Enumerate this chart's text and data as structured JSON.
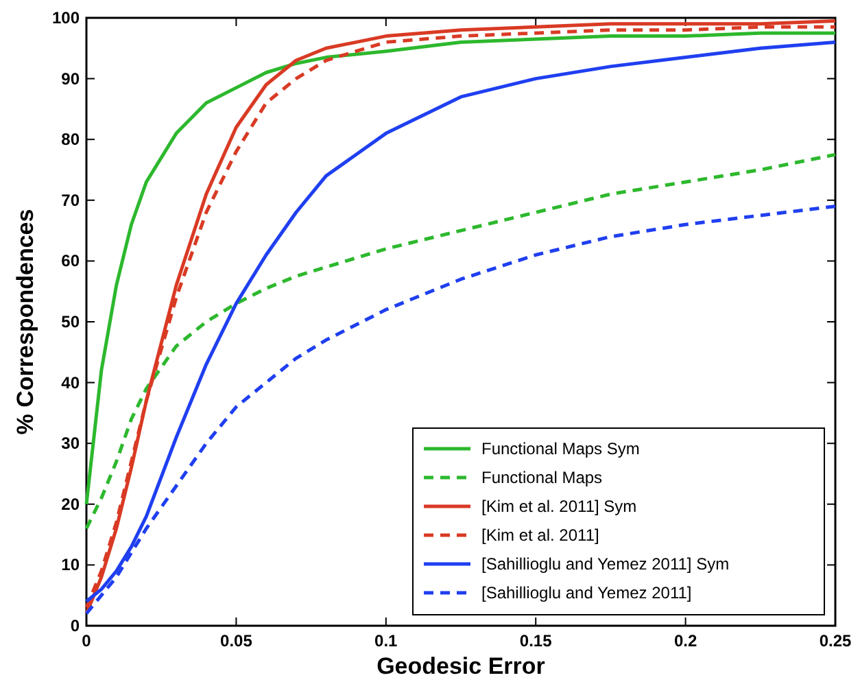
{
  "chart_data": {
    "type": "line",
    "xlabel": "Geodesic Error",
    "ylabel": "% Correspondences",
    "x": [
      0,
      0.005,
      0.01,
      0.015,
      0.02,
      0.03,
      0.04,
      0.05,
      0.06,
      0.07,
      0.08,
      0.1,
      0.125,
      0.15,
      0.175,
      0.2,
      0.225,
      0.25
    ],
    "series": [
      {
        "name": "Functional Maps Sym",
        "color": "#2db82d",
        "line_style": "solid",
        "values": [
          20,
          42,
          56,
          66,
          73,
          81,
          86,
          88.5,
          91,
          92.5,
          93.5,
          94.5,
          96,
          96.5,
          97,
          97,
          97.5,
          97.5
        ]
      },
      {
        "name": "Functional Maps",
        "color": "#2db82d",
        "line_style": "dashed",
        "values": [
          16,
          21,
          27,
          34,
          39,
          46,
          50,
          53,
          55.5,
          57.5,
          59,
          62,
          65,
          68,
          71,
          73,
          75,
          77.5
        ]
      },
      {
        "name": "[Kim et al. 2011] Sym",
        "color": "#d93a24",
        "line_style": "solid",
        "values": [
          2,
          8,
          16,
          26,
          37,
          56,
          71,
          82,
          89,
          93,
          95,
          97,
          98,
          98.5,
          99,
          99,
          99,
          99.5
        ]
      },
      {
        "name": "[Kim et al. 2011]",
        "color": "#d93a24",
        "line_style": "dashed",
        "values": [
          3,
          9,
          17,
          27,
          37,
          54,
          68,
          78,
          86,
          90,
          93,
          96,
          97,
          97.5,
          98,
          98,
          98.5,
          98.5
        ]
      },
      {
        "name": "[Sahillioglu and Yemez 2011] Sym",
        "color": "#1f3ff0",
        "line_style": "solid",
        "values": [
          4,
          6,
          9,
          13,
          18,
          31,
          43,
          53,
          61,
          68,
          74,
          81,
          87,
          90,
          92,
          93.5,
          95,
          96
        ]
      },
      {
        "name": "[Sahillioglu and Yemez 2011]",
        "color": "#1f3ff0",
        "line_style": "dashed",
        "values": [
          2,
          5,
          8,
          12,
          16,
          23,
          30,
          36,
          40,
          44,
          47,
          52,
          57,
          61,
          64,
          66,
          67.5,
          69
        ]
      }
    ],
    "xlim": [
      0,
      0.25
    ],
    "xticks": [
      0,
      0.05,
      0.1,
      0.15,
      0.2,
      0.25
    ],
    "ylim": [
      0,
      100
    ],
    "yticks": [
      0,
      10,
      20,
      30,
      40,
      50,
      60,
      70,
      80,
      90,
      100
    ],
    "legend": "bottom right",
    "grid": false,
    "marker": "none"
  }
}
